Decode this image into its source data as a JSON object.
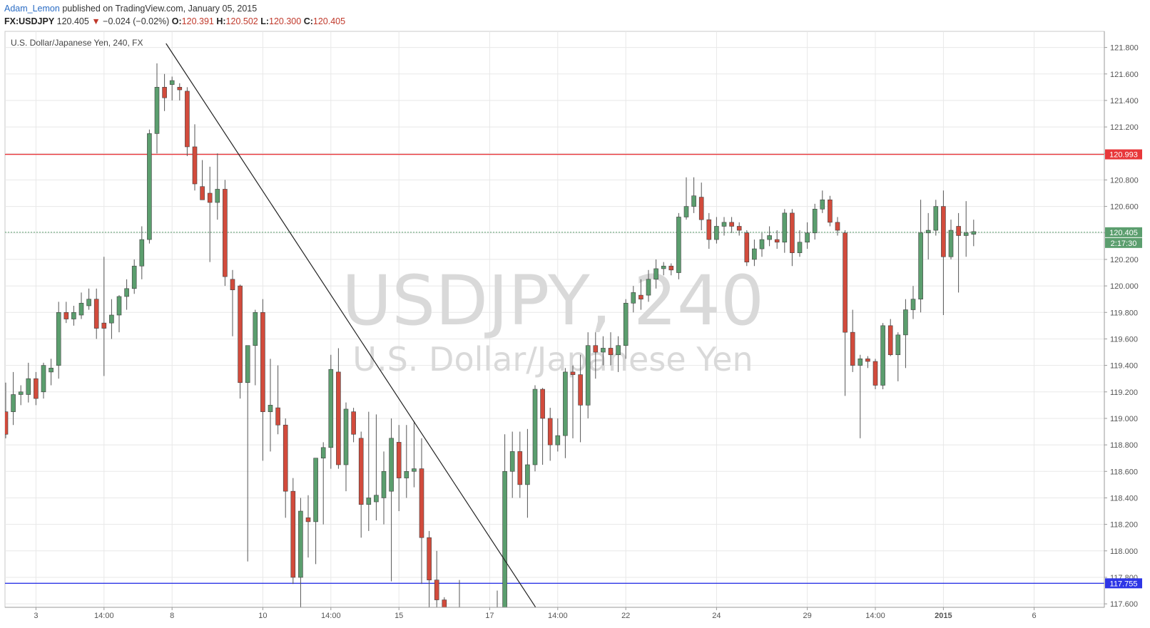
{
  "header": {
    "author": "Adam_Lemon",
    "published": "published on TradingView.com, January 05, 2015",
    "symbol": "FX:USDJPY",
    "last": "120.405",
    "change_arrow": "▼",
    "change": "−0.024 (−0.02%)",
    "o_label": "O:",
    "o": "120.391",
    "h_label": "H:",
    "h": "120.502",
    "l_label": "L:",
    "l": "120.300",
    "c_label": "C:",
    "c": "120.405"
  },
  "colors": {
    "up": "#5b9e6e",
    "down": "#d24b3c",
    "resistance": "#e8373a",
    "support": "#2e36e6",
    "last_price": "#5b9e6e",
    "grid": "#e8e8e8"
  },
  "chart_data": {
    "type": "candlestick",
    "symbol_label": "U.S. Dollar/Japanese Yen, 240, FX",
    "watermark_main": "USDJPY, 240",
    "watermark_sub": "U.S. Dollar/Japanese Yen",
    "ylim": [
      117.45,
      121.9
    ],
    "y_ticks": [
      117.6,
      117.8,
      118.0,
      118.2,
      118.4,
      118.6,
      118.8,
      119.0,
      119.2,
      119.4,
      119.6,
      119.8,
      120.0,
      120.2,
      120.4,
      120.6,
      120.8,
      121.0,
      121.2,
      121.4,
      121.6,
      121.8
    ],
    "x_ticks": [
      {
        "label": "3",
        "index": 4
      },
      {
        "label": "14:00",
        "index": 13
      },
      {
        "label": "8",
        "index": 22
      },
      {
        "label": "10",
        "index": 34
      },
      {
        "label": "14:00",
        "index": 43
      },
      {
        "label": "15",
        "index": 52
      },
      {
        "label": "17",
        "index": 64
      },
      {
        "label": "14:00",
        "index": 73
      },
      {
        "label": "22",
        "index": 82
      },
      {
        "label": "24",
        "index": 94
      },
      {
        "label": "29",
        "index": 106
      },
      {
        "label": "14:00",
        "index": 115
      },
      {
        "label": "2015",
        "index": 124
      },
      {
        "label": "6",
        "index": 136
      }
    ],
    "horizontal_levels": [
      {
        "name": "resistance",
        "value": 120.993,
        "label": "120.993"
      },
      {
        "name": "support",
        "value": 117.755,
        "label": "117.755"
      }
    ],
    "last_price": {
      "value": 120.405,
      "label": "120.405",
      "countdown": "2:17:30"
    },
    "trendline": {
      "from": {
        "index": 21.2,
        "value": 121.83
      },
      "to": {
        "index": 71.5,
        "value": 117.45
      }
    },
    "candles": [
      [
        119.05,
        119.27,
        118.85,
        118.88
      ],
      [
        119.05,
        119.35,
        118.95,
        119.18
      ],
      [
        119.18,
        119.25,
        119.1,
        119.2
      ],
      [
        119.18,
        119.42,
        119.12,
        119.3
      ],
      [
        119.3,
        119.35,
        119.1,
        119.15
      ],
      [
        119.2,
        119.42,
        119.15,
        119.4
      ],
      [
        119.35,
        119.45,
        119.25,
        119.38
      ],
      [
        119.4,
        119.88,
        119.3,
        119.8
      ],
      [
        119.8,
        119.88,
        119.72,
        119.75
      ],
      [
        119.75,
        119.85,
        119.7,
        119.8
      ],
      [
        119.78,
        119.95,
        119.75,
        119.87
      ],
      [
        119.85,
        119.98,
        119.82,
        119.9
      ],
      [
        119.9,
        119.98,
        119.6,
        119.68
      ],
      [
        119.72,
        120.22,
        119.32,
        119.68
      ],
      [
        119.72,
        119.9,
        119.6,
        119.78
      ],
      [
        119.78,
        119.93,
        119.65,
        119.92
      ],
      [
        119.92,
        120.05,
        119.82,
        119.98
      ],
      [
        119.98,
        120.2,
        119.94,
        120.15
      ],
      [
        120.15,
        120.45,
        120.05,
        120.35
      ],
      [
        120.35,
        121.18,
        120.32,
        121.15
      ],
      [
        121.15,
        121.68,
        121.0,
        121.5
      ],
      [
        121.5,
        121.6,
        121.32,
        121.42
      ],
      [
        121.52,
        121.58,
        121.4,
        121.55
      ],
      [
        121.5,
        121.53,
        121.4,
        121.48
      ],
      [
        121.47,
        121.5,
        120.98,
        121.05
      ],
      [
        121.05,
        121.22,
        120.72,
        120.77
      ],
      [
        120.75,
        120.95,
        120.65,
        120.65
      ],
      [
        120.7,
        120.9,
        120.18,
        120.63
      ],
      [
        120.63,
        121.0,
        120.5,
        120.73
      ],
      [
        120.73,
        120.8,
        120.0,
        120.07
      ],
      [
        120.05,
        120.12,
        119.62,
        119.97
      ],
      [
        120.0,
        120.01,
        119.15,
        119.27
      ],
      [
        119.27,
        119.55,
        117.92,
        119.55
      ],
      [
        119.55,
        119.82,
        119.25,
        119.8
      ],
      [
        119.8,
        119.9,
        118.68,
        119.05
      ],
      [
        119.05,
        119.45,
        118.75,
        119.1
      ],
      [
        119.08,
        119.4,
        118.88,
        118.95
      ],
      [
        118.95,
        119.0,
        118.25,
        118.45
      ],
      [
        118.45,
        118.55,
        117.75,
        117.8
      ],
      [
        117.8,
        118.4,
        117.48,
        118.3
      ],
      [
        118.25,
        118.42,
        117.95,
        118.22
      ],
      [
        118.22,
        118.7,
        117.9,
        118.7
      ],
      [
        118.7,
        118.82,
        118.2,
        118.78
      ],
      [
        118.78,
        119.48,
        118.62,
        119.37
      ],
      [
        119.35,
        119.53,
        118.62,
        118.65
      ],
      [
        118.65,
        119.12,
        118.45,
        119.07
      ],
      [
        119.05,
        119.08,
        118.82,
        118.88
      ],
      [
        118.85,
        118.9,
        118.1,
        118.35
      ],
      [
        118.35,
        119.05,
        118.15,
        118.4
      ],
      [
        118.37,
        119.03,
        118.23,
        118.42
      ],
      [
        118.4,
        118.75,
        118.2,
        118.6
      ],
      [
        118.45,
        119.0,
        117.77,
        118.85
      ],
      [
        118.82,
        118.95,
        118.3,
        118.55
      ],
      [
        118.55,
        118.95,
        118.4,
        118.6
      ],
      [
        118.6,
        118.98,
        118.48,
        118.62
      ],
      [
        118.62,
        118.85,
        117.75,
        118.1
      ],
      [
        118.1,
        118.15,
        117.55,
        117.78
      ],
      [
        117.78,
        118.0,
        117.53,
        117.63
      ],
      [
        117.63,
        117.65,
        117.4,
        117.45
      ],
      [
        117.45,
        117.48,
        117.3,
        117.38
      ],
      [
        117.38,
        117.78,
        117.3,
        117.35
      ],
      [
        117.35,
        117.45,
        117.25,
        117.3
      ],
      [
        117.32,
        117.48,
        117.25,
        117.42
      ],
      [
        117.4,
        117.45,
        117.28,
        117.35
      ],
      [
        117.35,
        117.5,
        117.3,
        117.4
      ],
      [
        117.3,
        117.7,
        117.2,
        117.45
      ],
      [
        117.45,
        118.88,
        117.4,
        118.6
      ],
      [
        118.6,
        118.9,
        118.4,
        118.75
      ],
      [
        118.75,
        118.9,
        118.4,
        118.5
      ],
      [
        118.5,
        118.92,
        118.25,
        118.65
      ],
      [
        118.65,
        119.25,
        118.6,
        119.22
      ],
      [
        119.22,
        119.23,
        118.65,
        119.0
      ],
      [
        119.0,
        119.08,
        118.68,
        118.8
      ],
      [
        118.8,
        119.0,
        118.75,
        118.87
      ],
      [
        118.87,
        119.38,
        118.7,
        119.35
      ],
      [
        119.35,
        119.4,
        118.85,
        119.33
      ],
      [
        119.33,
        119.48,
        118.82,
        119.1
      ],
      [
        119.1,
        119.65,
        119.0,
        119.55
      ],
      [
        119.55,
        119.65,
        119.3,
        119.5
      ],
      [
        119.5,
        119.62,
        119.4,
        119.53
      ],
      [
        119.53,
        119.65,
        119.4,
        119.48
      ],
      [
        119.48,
        119.62,
        119.35,
        119.55
      ],
      [
        119.55,
        119.9,
        119.45,
        119.87
      ],
      [
        119.87,
        120.0,
        119.8,
        119.95
      ],
      [
        119.93,
        120.05,
        119.82,
        119.9
      ],
      [
        119.93,
        120.12,
        119.88,
        120.05
      ],
      [
        120.05,
        120.2,
        119.98,
        120.13
      ],
      [
        120.13,
        120.18,
        120.08,
        120.15
      ],
      [
        120.15,
        120.17,
        120.08,
        120.12
      ],
      [
        120.1,
        120.55,
        120.05,
        120.52
      ],
      [
        120.52,
        120.82,
        120.5,
        120.6
      ],
      [
        120.6,
        120.82,
        120.55,
        120.68
      ],
      [
        120.67,
        120.78,
        120.42,
        120.5
      ],
      [
        120.5,
        120.55,
        120.28,
        120.35
      ],
      [
        120.35,
        120.52,
        120.32,
        120.45
      ],
      [
        120.45,
        120.52,
        120.38,
        120.48
      ],
      [
        120.48,
        120.52,
        120.4,
        120.45
      ],
      [
        120.45,
        120.48,
        120.38,
        120.42
      ],
      [
        120.4,
        120.42,
        120.15,
        120.18
      ],
      [
        120.2,
        120.35,
        120.15,
        120.28
      ],
      [
        120.28,
        120.4,
        120.22,
        120.35
      ],
      [
        120.35,
        120.45,
        120.3,
        120.38
      ],
      [
        120.35,
        120.42,
        120.28,
        120.33
      ],
      [
        120.33,
        120.58,
        120.25,
        120.55
      ],
      [
        120.55,
        120.58,
        120.15,
        120.25
      ],
      [
        120.25,
        120.42,
        120.22,
        120.33
      ],
      [
        120.33,
        120.48,
        120.28,
        120.4
      ],
      [
        120.4,
        120.62,
        120.35,
        120.58
      ],
      [
        120.58,
        120.72,
        120.55,
        120.65
      ],
      [
        120.65,
        120.68,
        120.45,
        120.48
      ],
      [
        120.48,
        120.52,
        120.38,
        120.42
      ],
      [
        120.4,
        120.42,
        119.17,
        119.65
      ],
      [
        119.65,
        119.82,
        119.35,
        119.4
      ],
      [
        119.4,
        119.48,
        118.85,
        119.45
      ],
      [
        119.45,
        119.47,
        119.38,
        119.43
      ],
      [
        119.43,
        119.45,
        119.22,
        119.25
      ],
      [
        119.25,
        119.72,
        119.22,
        119.7
      ],
      [
        119.7,
        119.75,
        119.47,
        119.48
      ],
      [
        119.48,
        119.65,
        119.28,
        119.63
      ],
      [
        119.63,
        119.9,
        119.38,
        119.82
      ],
      [
        119.82,
        120.0,
        119.75,
        119.9
      ],
      [
        119.9,
        120.65,
        119.8,
        120.4
      ],
      [
        120.4,
        120.55,
        120.2,
        120.42
      ],
      [
        120.42,
        120.65,
        120.38,
        120.6
      ],
      [
        120.6,
        120.72,
        119.78,
        120.22
      ],
      [
        120.22,
        120.5,
        120.2,
        120.42
      ],
      [
        120.45,
        120.55,
        119.95,
        120.38
      ],
      [
        120.38,
        120.64,
        120.22,
        120.4
      ],
      [
        120.39,
        120.5,
        120.3,
        120.41
      ]
    ]
  }
}
